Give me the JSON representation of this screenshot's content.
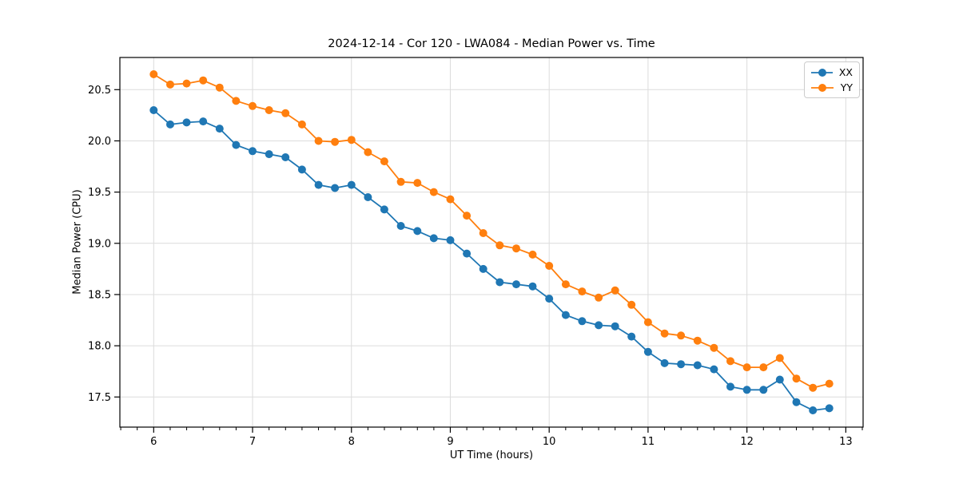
{
  "chart_data": {
    "type": "line",
    "title": "2024-12-14 - Cor 120 - LWA084 - Median Power vs. Time",
    "xlabel": "UT Time (hours)",
    "ylabel": "Median Power (CPU)",
    "xlim": [
      5.658,
      13.175
    ],
    "ylim": [
      17.206,
      20.814
    ],
    "xticks": [
      6,
      7,
      8,
      9,
      10,
      11,
      12,
      13
    ],
    "yticks": [
      17.5,
      18.0,
      18.5,
      19.0,
      19.5,
      20.0,
      20.5
    ],
    "x_minor_step": 0.16667,
    "grid": true,
    "legend_position": "upper right",
    "x": [
      6.0,
      6.167,
      6.333,
      6.5,
      6.667,
      6.833,
      7.0,
      7.167,
      7.333,
      7.5,
      7.667,
      7.833,
      8.0,
      8.167,
      8.333,
      8.5,
      8.667,
      8.833,
      9.0,
      9.167,
      9.333,
      9.5,
      9.667,
      9.833,
      10.0,
      10.167,
      10.333,
      10.5,
      10.667,
      10.833,
      11.0,
      11.167,
      11.333,
      11.5,
      11.667,
      11.833,
      12.0,
      12.167,
      12.333,
      12.5,
      12.667,
      12.833
    ],
    "series": [
      {
        "name": "XX",
        "color": "#1f77b4",
        "values": [
          20.3,
          20.16,
          20.18,
          20.19,
          20.12,
          19.96,
          19.9,
          19.87,
          19.84,
          19.72,
          19.57,
          19.54,
          19.57,
          19.45,
          19.33,
          19.17,
          19.12,
          19.05,
          19.03,
          18.9,
          18.75,
          18.62,
          18.6,
          18.58,
          18.46,
          18.3,
          18.24,
          18.2,
          18.19,
          18.09,
          17.94,
          17.83,
          17.82,
          17.81,
          17.77,
          17.6,
          17.57,
          17.57,
          17.67,
          17.45,
          17.37,
          17.39
        ]
      },
      {
        "name": "YY",
        "color": "#ff7f0e",
        "values": [
          20.65,
          20.55,
          20.56,
          20.59,
          20.52,
          20.39,
          20.34,
          20.3,
          20.27,
          20.16,
          20.0,
          19.99,
          20.01,
          19.89,
          19.8,
          19.6,
          19.59,
          19.5,
          19.43,
          19.27,
          19.1,
          18.98,
          18.95,
          18.89,
          18.78,
          18.6,
          18.53,
          18.47,
          18.54,
          18.4,
          18.23,
          18.12,
          18.1,
          18.05,
          17.98,
          17.85,
          17.79,
          17.79,
          17.88,
          17.68,
          17.59,
          17.63
        ]
      }
    ],
    "style": {
      "grid_color": "#dcdcdc",
      "spine_color": "#000000",
      "marker_radius": 5,
      "line_width": 1.8
    }
  }
}
